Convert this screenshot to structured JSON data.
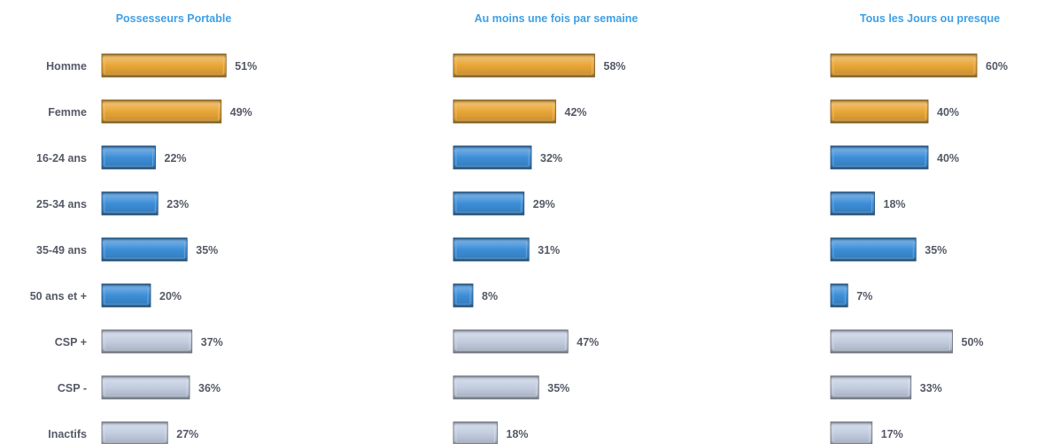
{
  "chart_data": {
    "type": "bar",
    "orientation": "horizontal",
    "categories": [
      "Homme",
      "Femme",
      "16-24 ans",
      "25-34 ans",
      "35-49 ans",
      "50 ans et +",
      "CSP +",
      "CSP -",
      "Inactifs"
    ],
    "category_groups": [
      "gender",
      "gender",
      "age",
      "age",
      "age",
      "age",
      "csp",
      "csp",
      "csp"
    ],
    "group_colors": {
      "gender": "#e9a637",
      "age": "#3d8ed8",
      "csp": "#c3cde0"
    },
    "series": [
      {
        "name": "Possesseurs Portable",
        "values": [
          51,
          49,
          22,
          23,
          35,
          20,
          37,
          36,
          27
        ]
      },
      {
        "name": "Au moins une fois par semaine",
        "values": [
          58,
          42,
          32,
          29,
          31,
          8,
          47,
          35,
          18
        ]
      },
      {
        "name": "Tous les Jours ou presque",
        "values": [
          60,
          40,
          40,
          18,
          35,
          7,
          50,
          33,
          17
        ]
      }
    ],
    "value_suffix": "%",
    "xlim": [
      0,
      60
    ],
    "grid": false,
    "legend": "none",
    "title": "",
    "xlabel": "",
    "ylabel": ""
  }
}
